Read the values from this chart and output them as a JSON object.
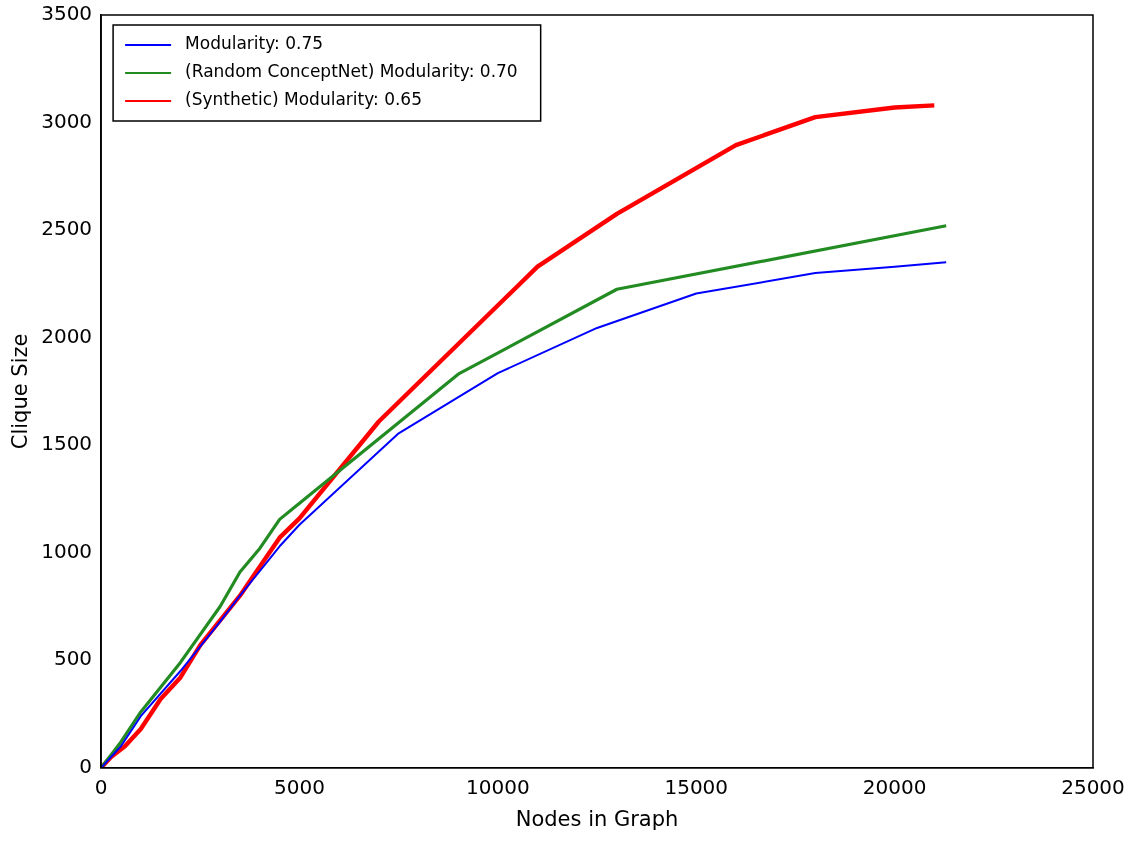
{
  "chart_data": {
    "type": "line",
    "xlabel": "Nodes in Graph",
    "ylabel": "Clique Size",
    "xlim": [
      0,
      25000
    ],
    "xticks": [
      0,
      5000,
      10000,
      15000,
      20000,
      25000
    ],
    "ylim": [
      0,
      3500
    ],
    "yticks": [
      0,
      500,
      1000,
      1500,
      2000,
      2500,
      3000,
      3500
    ],
    "grid": false,
    "legend": "top left",
    "marker": "none",
    "line_style": "solid",
    "series": [
      {
        "name": "Modularity: 0.75",
        "color": "#0000ff",
        "x": [
          0,
          250,
          500,
          1000,
          2000,
          3000,
          3500,
          4500,
          5000,
          7500,
          10000,
          12500,
          15000,
          18000,
          20000,
          21300
        ],
        "values": [
          0,
          50,
          100,
          240,
          450,
          680,
          800,
          1030,
          1130,
          1555,
          1835,
          2045,
          2205,
          2300,
          2330,
          2350
        ]
      },
      {
        "name": "(Random ConceptNet) Modularity: 0.70",
        "color": "#228b22",
        "x": [
          0,
          250,
          500,
          1000,
          2000,
          3000,
          3500,
          4000,
          4500,
          9000,
          13000,
          21300
        ],
        "values": [
          0,
          60,
          120,
          260,
          490,
          750,
          910,
          1020,
          1155,
          1830,
          2225,
          2520
        ]
      },
      {
        "name": "(Synthetic) Modularity: 0.65",
        "color": "#ff0000",
        "x": [
          0,
          250,
          600,
          1000,
          1500,
          2000,
          2500,
          3500,
          4500,
          5000,
          7000,
          11000,
          13000,
          16000,
          18000,
          20000,
          21000
        ],
        "values": [
          0,
          50,
          100,
          180,
          320,
          420,
          570,
          800,
          1070,
          1160,
          1610,
          2330,
          2575,
          2895,
          3025,
          3070,
          3080
        ]
      }
    ]
  }
}
